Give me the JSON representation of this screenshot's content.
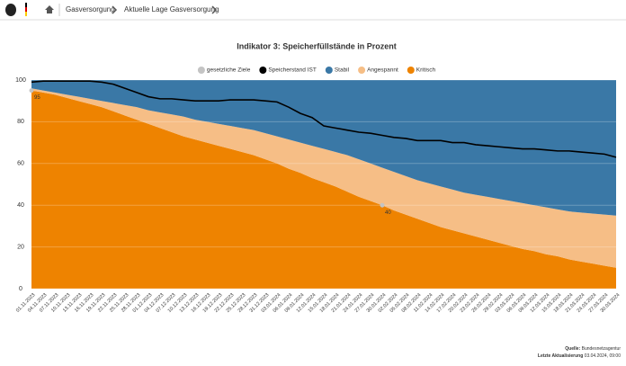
{
  "breadcrumb": [
    "Gasversorgung",
    "Aktuelle Lage Gasversorgung"
  ],
  "chart_data": {
    "type": "area",
    "title": "Indikator 3: Speicherfüllstände in Prozent",
    "categories": [
      "01.11.2023",
      "04.11.2023",
      "07.11.2023",
      "10.11.2023",
      "13.11.2023",
      "16.11.2023",
      "19.11.2023",
      "22.11.2023",
      "25.11.2023",
      "28.11.2023",
      "01.12.2023",
      "04.12.2023",
      "07.12.2023",
      "10.12.2023",
      "13.12.2023",
      "16.12.2023",
      "19.12.2023",
      "22.12.2023",
      "25.12.2023",
      "28.12.2023",
      "31.12.2023",
      "03.01.2024",
      "06.01.2024",
      "09.01.2024",
      "12.01.2024",
      "15.01.2024",
      "18.01.2024",
      "21.01.2024",
      "24.01.2024",
      "27.01.2024",
      "30.01.2024",
      "02.02.2024",
      "05.02.2024",
      "08.02.2024",
      "11.02.2024",
      "14.02.2024",
      "17.02.2024",
      "20.02.2024",
      "23.02.2024",
      "26.02.2024",
      "29.02.2024",
      "03.03.2024",
      "06.03.2024",
      "09.03.2024",
      "12.03.2024",
      "15.03.2024",
      "18.03.2024",
      "21.03.2024",
      "24.03.2024",
      "27.03.2024",
      "30.03.2024"
    ],
    "ylim": [
      0,
      100
    ],
    "yticks": [
      0,
      20,
      40,
      60,
      80,
      100
    ],
    "series": [
      {
        "name": "gesetzliche Ziele",
        "type": "scatter",
        "color": "#c4c4c4",
        "values": [
          95,
          null,
          null,
          null,
          null,
          null,
          null,
          null,
          null,
          null,
          null,
          null,
          null,
          null,
          null,
          null,
          null,
          null,
          null,
          null,
          null,
          null,
          null,
          null,
          null,
          null,
          null,
          null,
          null,
          null,
          40,
          null,
          null,
          null,
          null,
          null,
          null,
          null,
          null,
          null,
          null,
          null,
          null,
          null,
          null,
          null,
          null,
          null,
          null,
          null,
          null
        ]
      },
      {
        "name": "Speicherstand IST",
        "type": "line",
        "color": "#000000",
        "values": [
          99,
          99.5,
          99.5,
          99.5,
          99.5,
          99.5,
          99,
          98,
          96,
          94,
          92,
          91,
          91,
          90.5,
          90,
          90,
          90,
          90.5,
          90.5,
          90.5,
          90,
          89.5,
          87,
          84,
          82,
          78,
          77,
          76,
          75,
          74.5,
          73.5,
          72.5,
          72,
          71,
          71,
          71,
          70,
          70,
          69,
          68.5,
          68,
          67.5,
          67,
          67,
          66.5,
          66,
          66,
          65.5,
          65,
          64.5,
          63
        ]
      },
      {
        "name": "Stabil",
        "type": "area",
        "color": "#3a78a6",
        "values": [
          4,
          5,
          6,
          7,
          8,
          9,
          10,
          11,
          12,
          13,
          14.5,
          15.5,
          16.5,
          17.5,
          19,
          20,
          21,
          22,
          23,
          24,
          25.5,
          27,
          28.5,
          30,
          31.5,
          33,
          34.5,
          36,
          38,
          40,
          42,
          44,
          46,
          48,
          49.5,
          51,
          52.5,
          54,
          55,
          56,
          57,
          58,
          59,
          60,
          61,
          62,
          63,
          63.5,
          64,
          64.5,
          65
        ]
      },
      {
        "name": "Angespannt",
        "type": "area",
        "color": "#f6be86",
        "values": [
          1,
          1,
          1,
          1.5,
          2,
          2.5,
          3,
          4,
          5,
          6,
          6.5,
          7.5,
          8.5,
          9.5,
          9.5,
          10,
          10.5,
          11,
          11.5,
          12,
          12.5,
          13,
          14,
          14.5,
          15.5,
          16,
          16.5,
          17.5,
          18,
          18,
          18,
          18.5,
          18.5,
          18.5,
          19,
          19.5,
          19.5,
          19.5,
          20,
          20.5,
          21,
          21.5,
          22,
          22,
          22.5,
          22.5,
          23,
          23.5,
          24,
          24.5,
          25
        ]
      },
      {
        "name": "Kritisch",
        "type": "area",
        "color": "#ee8300",
        "values": [
          95,
          94,
          93,
          91.5,
          90,
          88.5,
          87,
          85,
          83,
          81,
          79,
          77,
          75,
          73,
          71.5,
          70,
          68.5,
          67,
          65.5,
          64,
          62,
          60,
          57.5,
          55.5,
          53,
          51,
          49,
          46.5,
          44,
          42,
          40,
          37.5,
          35.5,
          33.5,
          31.5,
          29.5,
          28,
          26.5,
          25,
          23.5,
          22,
          20.5,
          19,
          18,
          16.5,
          15.5,
          14,
          13,
          12,
          11,
          10
        ]
      }
    ]
  },
  "footer": {
    "source_label": "Quelle:",
    "source": "Bundesnetzagentur",
    "updated_label": "Letzte Aktualisierung",
    "updated": "03.04.2024, 09:00"
  }
}
